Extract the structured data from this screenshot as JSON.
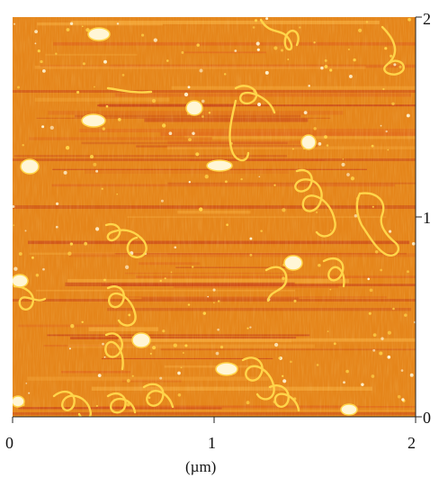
{
  "image": {
    "kind": "atomic force microscopy height image",
    "palette": {
      "background": "#e5851a",
      "dark_streak": "#c9461a",
      "mid_streak": "#e06b1c",
      "light": "#f3a536",
      "feature": "#ffd54a",
      "bright": "#fff6d6"
    }
  },
  "axes": {
    "x_ticks": [
      "0",
      "1",
      "2"
    ],
    "y_ticks": [
      "2",
      "1",
      "0"
    ],
    "unit": "(µm)",
    "x_range": [
      0,
      2
    ],
    "y_range": [
      0,
      2
    ]
  }
}
